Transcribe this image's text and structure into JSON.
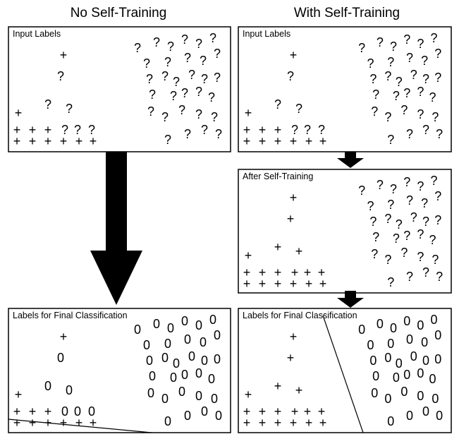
{
  "headers": [
    "No Self-Training",
    "With Self-Training"
  ],
  "panels": [
    {
      "title": "Input Labels",
      "labeled": "+",
      "unlabeled": "?"
    },
    {
      "title": "Input Labels",
      "labeled": "+",
      "unlabeled": "?"
    },
    {
      "title": "After Self-Training",
      "labeled": "+",
      "unlabeled": "?"
    },
    {
      "title": "Labels for Final Classification",
      "labeled": "+",
      "unlabeled": "0"
    },
    {
      "title": "Labels for Final Classification",
      "labeled": "+",
      "unlabeled": "0"
    }
  ]
}
